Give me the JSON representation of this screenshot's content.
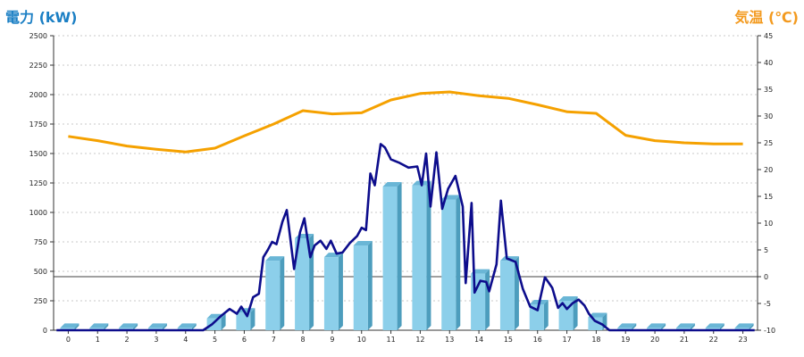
{
  "chart_data": {
    "type": "bar+line",
    "title": "",
    "y_left": {
      "label": "電力 (kW)",
      "min": 0,
      "max": 2500,
      "ticks": [
        0,
        250,
        500,
        750,
        1000,
        1250,
        1500,
        1750,
        2000,
        2250,
        2500
      ]
    },
    "y_right": {
      "label": "気温 (℃)",
      "min": -10,
      "max": 45,
      "ticks": [
        -10,
        -5,
        0,
        5,
        10,
        15,
        20,
        25,
        30,
        35,
        40,
        45
      ]
    },
    "categories": [
      "0",
      "1",
      "2",
      "3",
      "4",
      "5",
      "6",
      "7",
      "8",
      "9",
      "10",
      "11",
      "12",
      "13",
      "14",
      "15",
      "16",
      "17",
      "18",
      "19",
      "20",
      "21",
      "22",
      "23"
    ],
    "bars": {
      "axis": "left",
      "values": [
        20,
        20,
        20,
        20,
        20,
        100,
        150,
        590,
        780,
        620,
        720,
        1220,
        1230,
        1110,
        480,
        590,
        220,
        250,
        110,
        20,
        20,
        20,
        20,
        20
      ],
      "color": "#8ccfea"
    },
    "power_line": {
      "axis": "left",
      "color": "#0d0d8c",
      "points": [
        [
          -0.4,
          0
        ],
        [
          4.6,
          0
        ],
        [
          4.9,
          50
        ],
        [
          5.2,
          120
        ],
        [
          5.5,
          180
        ],
        [
          5.75,
          140
        ],
        [
          5.9,
          200
        ],
        [
          6.1,
          120
        ],
        [
          6.3,
          280
        ],
        [
          6.5,
          310
        ],
        [
          6.65,
          620
        ],
        [
          6.8,
          680
        ],
        [
          6.95,
          750
        ],
        [
          7.1,
          730
        ],
        [
          7.3,
          920
        ],
        [
          7.45,
          1020
        ],
        [
          7.7,
          520
        ],
        [
          7.9,
          830
        ],
        [
          8.05,
          950
        ],
        [
          8.25,
          620
        ],
        [
          8.4,
          720
        ],
        [
          8.6,
          760
        ],
        [
          8.8,
          690
        ],
        [
          8.95,
          760
        ],
        [
          9.15,
          650
        ],
        [
          9.35,
          660
        ],
        [
          9.6,
          740
        ],
        [
          9.85,
          800
        ],
        [
          10.0,
          870
        ],
        [
          10.15,
          850
        ],
        [
          10.3,
          1330
        ],
        [
          10.45,
          1230
        ],
        [
          10.65,
          1580
        ],
        [
          10.8,
          1550
        ],
        [
          11.0,
          1450
        ],
        [
          11.3,
          1420
        ],
        [
          11.6,
          1380
        ],
        [
          11.9,
          1390
        ],
        [
          12.05,
          1230
        ],
        [
          12.2,
          1500
        ],
        [
          12.35,
          1050
        ],
        [
          12.55,
          1510
        ],
        [
          12.75,
          1030
        ],
        [
          12.95,
          1200
        ],
        [
          13.2,
          1310
        ],
        [
          13.45,
          1050
        ],
        [
          13.55,
          400
        ],
        [
          13.75,
          1080
        ],
        [
          13.85,
          320
        ],
        [
          14.05,
          420
        ],
        [
          14.25,
          410
        ],
        [
          14.35,
          330
        ],
        [
          14.6,
          560
        ],
        [
          14.75,
          1100
        ],
        [
          14.95,
          610
        ],
        [
          15.25,
          580
        ],
        [
          15.5,
          350
        ],
        [
          15.75,
          200
        ],
        [
          16.0,
          170
        ],
        [
          16.25,
          450
        ],
        [
          16.5,
          360
        ],
        [
          16.7,
          190
        ],
        [
          16.85,
          230
        ],
        [
          17.0,
          180
        ],
        [
          17.2,
          230
        ],
        [
          17.4,
          260
        ],
        [
          17.6,
          210
        ],
        [
          17.75,
          140
        ],
        [
          17.95,
          80
        ],
        [
          18.2,
          50
        ],
        [
          18.45,
          0
        ],
        [
          23.4,
          0
        ]
      ]
    },
    "temp_line": {
      "axis": "right",
      "color": "#f5a100",
      "points": [
        [
          0,
          26.2
        ],
        [
          1,
          25.4
        ],
        [
          2,
          24.4
        ],
        [
          3,
          23.8
        ],
        [
          4,
          23.3
        ],
        [
          5,
          24.0
        ],
        [
          6,
          26.3
        ],
        [
          7,
          28.5
        ],
        [
          8,
          31.0
        ],
        [
          9,
          30.4
        ],
        [
          10,
          30.6
        ],
        [
          11,
          33.0
        ],
        [
          12,
          34.2
        ],
        [
          13,
          34.5
        ],
        [
          14,
          33.8
        ],
        [
          15,
          33.3
        ],
        [
          16,
          32.1
        ],
        [
          17,
          30.8
        ],
        [
          18,
          30.5
        ],
        [
          19,
          26.4
        ],
        [
          20,
          25.4
        ],
        [
          21,
          25.0
        ],
        [
          22,
          24.8
        ],
        [
          23,
          24.8
        ]
      ]
    },
    "grid": true,
    "zero_reference": 0
  }
}
